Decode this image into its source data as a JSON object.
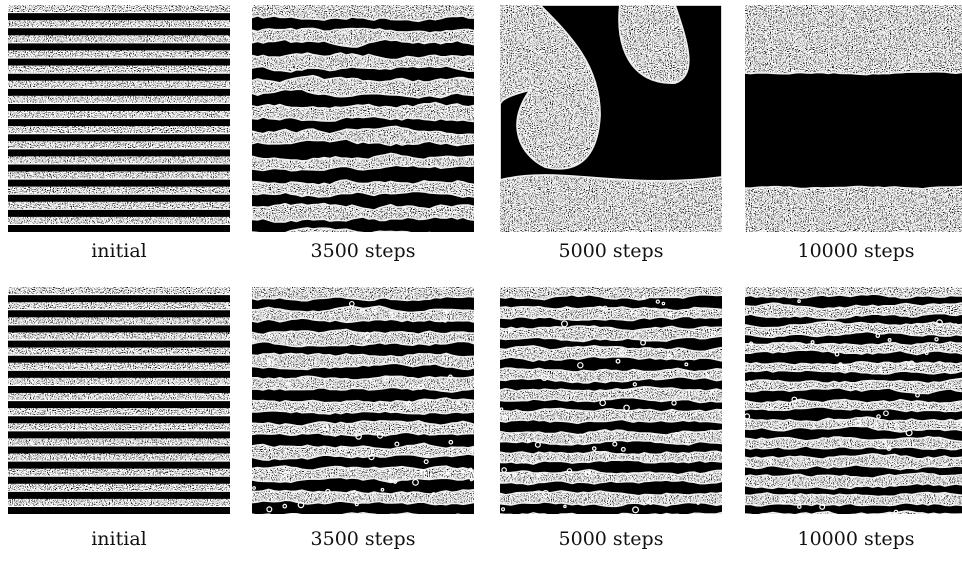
{
  "panels": [
    [
      {
        "caption": "initial"
      },
      {
        "caption": "3500 steps"
      },
      {
        "caption": "5000 steps"
      },
      {
        "caption": "10000 steps"
      }
    ],
    [
      {
        "caption": "initial"
      },
      {
        "caption": "3500 steps"
      },
      {
        "caption": "5000 steps"
      },
      {
        "caption": "10000 steps"
      }
    ]
  ]
}
